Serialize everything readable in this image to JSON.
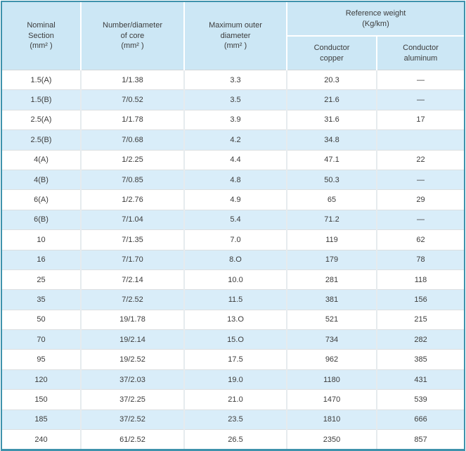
{
  "colors": {
    "border": "#3e92ac",
    "header_bg": "#cce7f5",
    "stripe_bg": "#d9edf9",
    "text": "#3c3c3c"
  },
  "header": {
    "nominal_section": "Nominal\nSection\n(mm² )",
    "number_diameter_of_core": "Number/diameter\nof core\n(mm² )",
    "maximum_outer_diameter": "Maximum outer\ndiameter\n(mm² )",
    "reference_weight": "Reference weight\n(Kg/km)",
    "conductor_copper": "Conductor\ncopper",
    "conductor_aluminum": "Conductor\naluminum"
  },
  "rows": [
    {
      "nominal": "1.5(A)",
      "core": "1/1.38",
      "outer": "3.3",
      "copper": "20.3",
      "aluminum": "—"
    },
    {
      "nominal": "1.5(B)",
      "core": "7/0.52",
      "outer": "3.5",
      "copper": "21.6",
      "aluminum": "—"
    },
    {
      "nominal": "2.5(A)",
      "core": "1/1.78",
      "outer": "3.9",
      "copper": "31.6",
      "aluminum": "17"
    },
    {
      "nominal": "2.5(B)",
      "core": "7/0.68",
      "outer": "4.2",
      "copper": "34.8",
      "aluminum": ""
    },
    {
      "nominal": "4(A)",
      "core": "1/2.25",
      "outer": "4.4",
      "copper": "47.1",
      "aluminum": "22"
    },
    {
      "nominal": "4(B)",
      "core": "7/0.85",
      "outer": "4.8",
      "copper": "50.3",
      "aluminum": "—"
    },
    {
      "nominal": "6(A)",
      "core": "1/2.76",
      "outer": "4.9",
      "copper": "65",
      "aluminum": "29"
    },
    {
      "nominal": "6(B)",
      "core": "7/1.04",
      "outer": "5.4",
      "copper": "71.2",
      "aluminum": "—"
    },
    {
      "nominal": "10",
      "core": "7/1.35",
      "outer": "7.0",
      "copper": "119",
      "aluminum": "62"
    },
    {
      "nominal": "16",
      "core": "7/1.70",
      "outer": "8.O",
      "copper": "179",
      "aluminum": "78"
    },
    {
      "nominal": "25",
      "core": "7/2.14",
      "outer": "10.0",
      "copper": "281",
      "aluminum": "118"
    },
    {
      "nominal": "35",
      "core": "7/2.52",
      "outer": "11.5",
      "copper": "381",
      "aluminum": "156"
    },
    {
      "nominal": "50",
      "core": "19/1.78",
      "outer": "13.O",
      "copper": "521",
      "aluminum": "215"
    },
    {
      "nominal": "70",
      "core": "19/2.14",
      "outer": "15.O",
      "copper": "734",
      "aluminum": "282"
    },
    {
      "nominal": "95",
      "core": "19/2.52",
      "outer": "17.5",
      "copper": "962",
      "aluminum": "385"
    },
    {
      "nominal": "120",
      "core": "37/2.03",
      "outer": "19.0",
      "copper": "1180",
      "aluminum": "431"
    },
    {
      "nominal": "150",
      "core": "37/2.25",
      "outer": "21.0",
      "copper": "1470",
      "aluminum": "539"
    },
    {
      "nominal": "185",
      "core": "37/2.52",
      "outer": "23.5",
      "copper": "1810",
      "aluminum": "666"
    },
    {
      "nominal": "240",
      "core": "61/2.52",
      "outer": "26.5",
      "copper": "2350",
      "aluminum": "857"
    }
  ]
}
